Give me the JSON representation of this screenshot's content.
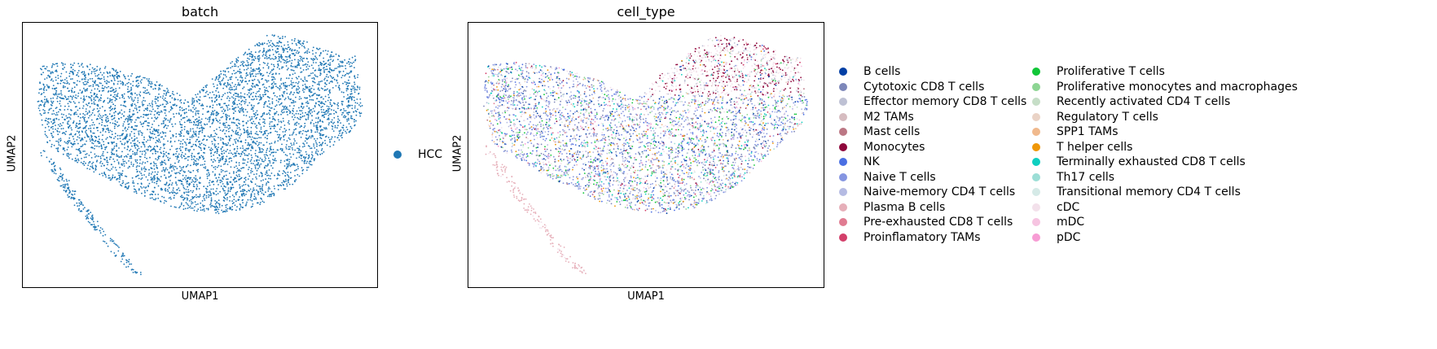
{
  "chart_data": [
    {
      "type": "scatter",
      "title": "batch",
      "xlabel": "UMAP1",
      "ylabel": "UMAP2",
      "grid": false,
      "xticks": [],
      "yticks": [],
      "legend_position": "right",
      "legend": [
        {
          "name": "HCC",
          "color": "#1f77b4"
        }
      ]
    },
    {
      "type": "scatter",
      "title": "cell_type",
      "xlabel": "UMAP1",
      "ylabel": "UMAP2",
      "grid": false,
      "xticks": [],
      "yticks": [],
      "legend_position": "right",
      "legend": [
        {
          "name": "B cells",
          "color": "#023fa5"
        },
        {
          "name": "Cytotoxic CD8 T cells",
          "color": "#7d87b9"
        },
        {
          "name": "Effector memory CD8 T cells",
          "color": "#bec1d4"
        },
        {
          "name": "M2 TAMs",
          "color": "#d6bcc0"
        },
        {
          "name": "Mast cells",
          "color": "#bb7784"
        },
        {
          "name": "Monocytes",
          "color": "#8e063b"
        },
        {
          "name": "NK",
          "color": "#4a6fe3"
        },
        {
          "name": "Naive T cells",
          "color": "#8595e1"
        },
        {
          "name": "Naive-memory CD4 T cells",
          "color": "#b5bbe3"
        },
        {
          "name": "Plasma B cells",
          "color": "#e6afb9"
        },
        {
          "name": "Pre-exhausted CD8 T cells",
          "color": "#e07b91"
        },
        {
          "name": "Proinflamatory TAMs",
          "color": "#d33f6a"
        },
        {
          "name": "Proliferative T cells",
          "color": "#11c638"
        },
        {
          "name": "Proliferative monocytes and macrophages",
          "color": "#8dd593"
        },
        {
          "name": "Recently activated CD4 T cells",
          "color": "#c6dec7"
        },
        {
          "name": "Regulatory T cells",
          "color": "#ead3c6"
        },
        {
          "name": "SPP1 TAMs",
          "color": "#f0b98d"
        },
        {
          "name": "T helper cells",
          "color": "#ef9708"
        },
        {
          "name": "Terminally exhausted CD8 T cells",
          "color": "#0fcfc0"
        },
        {
          "name": "Th17 cells",
          "color": "#9cded6"
        },
        {
          "name": "Transitional memory CD4 T cells",
          "color": "#d5eae7"
        },
        {
          "name": "cDC",
          "color": "#f3e1eb"
        },
        {
          "name": "mDC",
          "color": "#f6c4e1"
        },
        {
          "name": "pDC",
          "color": "#f79cd4"
        }
      ]
    }
  ]
}
